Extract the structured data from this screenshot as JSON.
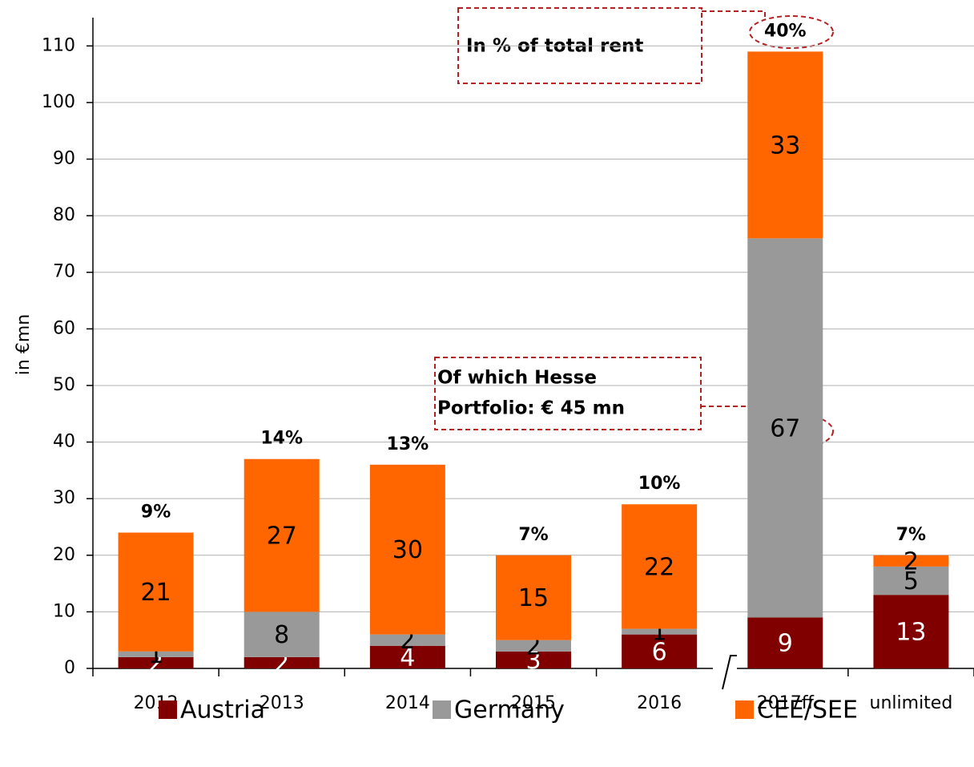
{
  "chart_data": {
    "type": "stacked_bar",
    "y_axis_label": "in €mn",
    "categories": [
      "2012",
      "2013",
      "2014",
      "2015",
      "2016",
      "2017ff",
      "unlimited"
    ],
    "series": [
      {
        "name": "Austria",
        "color": "#800000",
        "values": [
          2,
          2,
          4,
          3,
          6,
          9,
          13
        ]
      },
      {
        "name": "Germany",
        "color": "#999999",
        "values": [
          1,
          8,
          2,
          2,
          1,
          67,
          5
        ]
      },
      {
        "name": "CEE/SEE",
        "color": "#ff6600",
        "values": [
          21,
          27,
          30,
          15,
          22,
          33,
          2
        ]
      }
    ],
    "share_of_total_rent": {
      "values": [
        9,
        14,
        13,
        7,
        10,
        40,
        7
      ],
      "value_labels": [
        "9%",
        "14%",
        "13%",
        "7%",
        "10%",
        "40%",
        "7%"
      ]
    },
    "annotations": [
      {
        "lines": [
          "In % of total rent"
        ]
      },
      {
        "lines": [
          "Of which Hesse",
          "Portfolio: € 45 mn"
        ]
      }
    ],
    "ylim": [
      0,
      115
    ],
    "yticks": [
      0,
      10,
      20,
      30,
      40,
      50,
      60,
      70,
      80,
      90,
      100,
      110
    ],
    "grid": true,
    "legend": "bottom"
  }
}
